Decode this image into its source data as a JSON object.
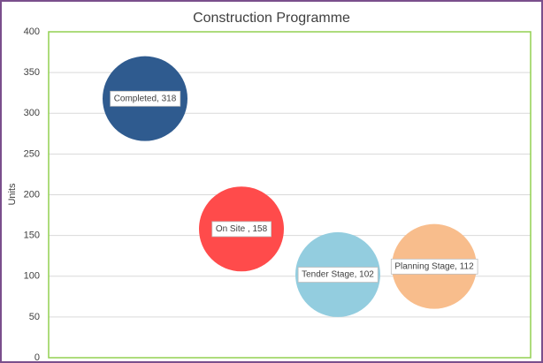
{
  "chart_data": {
    "type": "scatter",
    "title": "Construction Programme",
    "y_label": "Units",
    "categories": [
      "Completed",
      "On Site ",
      "Tender Stage",
      "Planning Stage"
    ],
    "values": [
      318,
      158,
      102,
      112
    ],
    "value_labels": [
      "Completed, 318",
      "On Site , 158",
      "Tender Stage, 102",
      "Planning Stage, 112"
    ],
    "colors": [
      "#2f5b8f",
      "#ff4b4b",
      "#93cddf",
      "#f8bd8c"
    ],
    "ylim": [
      0,
      400
    ],
    "yticks": [
      0,
      50,
      100,
      150,
      200,
      250,
      300,
      350,
      400
    ],
    "grid": true
  }
}
